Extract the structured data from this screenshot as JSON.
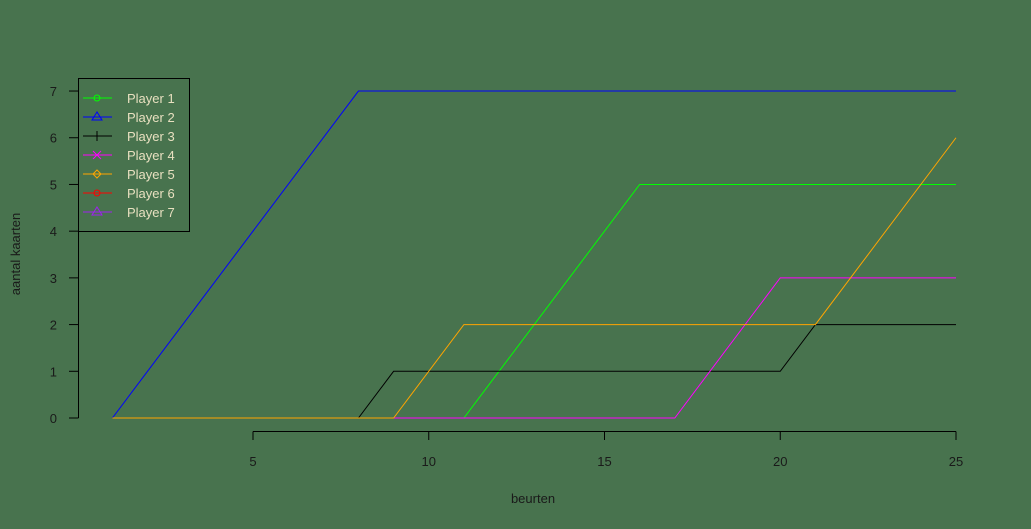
{
  "chart_data": {
    "type": "line",
    "title": "",
    "xlabel": "beurten",
    "ylabel": "aantal kaarten",
    "xlim": [
      1,
      25
    ],
    "ylim": [
      0,
      7
    ],
    "x_ticks": [
      5,
      10,
      15,
      20,
      25
    ],
    "y_ticks": [
      0,
      1,
      2,
      3,
      4,
      5,
      6,
      7
    ],
    "grid": false,
    "legend_position": "top-left",
    "background": "#48734e",
    "series": [
      {
        "name": "Player 1",
        "color": "#00ff00",
        "marker": "circle",
        "points": [
          [
            1,
            0
          ],
          [
            11,
            0
          ],
          [
            16,
            5
          ],
          [
            25,
            5
          ]
        ]
      },
      {
        "name": "Player 2",
        "color": "#0000ff",
        "marker": "triangle",
        "points": [
          [
            1,
            0
          ],
          [
            8,
            7
          ],
          [
            25,
            7
          ]
        ]
      },
      {
        "name": "Player 3",
        "color": "#000000",
        "marker": "plus",
        "points": [
          [
            1,
            0
          ],
          [
            8,
            0
          ],
          [
            9,
            1
          ],
          [
            20,
            1
          ],
          [
            21,
            2
          ],
          [
            25,
            2
          ]
        ]
      },
      {
        "name": "Player 4",
        "color": "#ff00ff",
        "marker": "x",
        "points": [
          [
            9,
            0
          ],
          [
            17,
            0
          ],
          [
            20,
            3
          ],
          [
            25,
            3
          ]
        ]
      },
      {
        "name": "Player 5",
        "color": "#ffa500",
        "marker": "diamond",
        "points": [
          [
            1,
            0
          ],
          [
            9,
            0
          ],
          [
            11,
            2
          ],
          [
            21,
            2
          ],
          [
            25,
            6
          ]
        ]
      },
      {
        "name": "Player 6",
        "color": "#ff0000",
        "marker": "circle",
        "points": []
      },
      {
        "name": "Player 7",
        "color": "#a020f0",
        "marker": "triangle",
        "points": []
      }
    ]
  }
}
